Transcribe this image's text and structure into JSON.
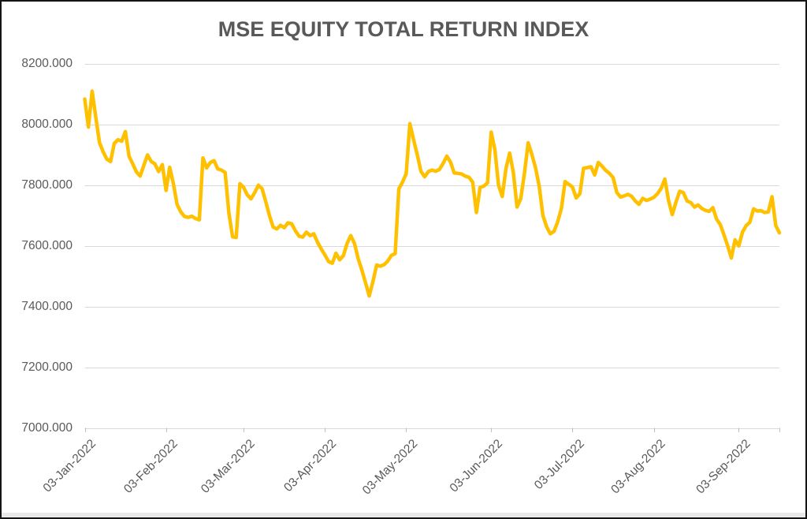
{
  "title": "MSE EQUITY TOTAL RETURN INDEX",
  "colors": {
    "line": "#FFC000",
    "gridline": "#D9D9D9",
    "axis_line": "#D9D9D9",
    "tick_mark": "#BFBFBF",
    "label_text": "#595959",
    "title_text": "#595959",
    "background": "#FFFFFF",
    "frame_border": "#141414",
    "bottom_strip": "#E9E9E9"
  },
  "chart_data": {
    "type": "line",
    "title": "MSE EQUITY TOTAL RETURN INDEX",
    "xlabel": "",
    "ylabel": "",
    "ylim": [
      7000,
      8200
    ],
    "y_tick_values": [
      8200,
      8000,
      7800,
      7600,
      7400,
      7200,
      7000
    ],
    "y_tick_labels": [
      "8200.000",
      "8000.000",
      "7800.000",
      "7600.000",
      "7400.000",
      "7200.000",
      "7000.000"
    ],
    "x_tick_labels": [
      "03-Jan-2022",
      "03-Feb-2022",
      "03-Mar-2022",
      "03-Apr-2022",
      "03-May-2022",
      "03-Jun-2022",
      "03-Jul-2022",
      "03-Aug-2022",
      "03-Sep-2022"
    ],
    "x_tick_day_index": [
      0,
      22,
      43,
      65,
      87,
      110,
      132,
      154,
      177
    ],
    "grid": true,
    "legend": "none",
    "series": [
      {
        "name": "MSE Equity Total Return Index",
        "color": "#FFC000",
        "values": [
          8084,
          7992,
          8110,
          8023,
          7940,
          7910,
          7886,
          7878,
          7938,
          7950,
          7945,
          7977,
          7895,
          7870,
          7844,
          7830,
          7865,
          7900,
          7878,
          7870,
          7845,
          7868,
          7783,
          7859,
          7805,
          7737,
          7712,
          7697,
          7694,
          7698,
          7690,
          7686,
          7890,
          7857,
          7875,
          7881,
          7854,
          7850,
          7842,
          7709,
          7630,
          7628,
          7805,
          7793,
          7768,
          7755,
          7776,
          7800,
          7788,
          7745,
          7700,
          7662,
          7656,
          7668,
          7660,
          7676,
          7673,
          7650,
          7632,
          7629,
          7645,
          7634,
          7640,
          7612,
          7590,
          7570,
          7548,
          7543,
          7576,
          7554,
          7568,
          7608,
          7634,
          7608,
          7558,
          7520,
          7478,
          7435,
          7482,
          7537,
          7533,
          7538,
          7550,
          7569,
          7574,
          7788,
          7810,
          7838,
          8003,
          7950,
          7900,
          7845,
          7828,
          7845,
          7850,
          7846,
          7852,
          7872,
          7896,
          7876,
          7840,
          7839,
          7837,
          7830,
          7826,
          7810,
          7710,
          7793,
          7797,
          7808,
          7975,
          7916,
          7800,
          7763,
          7855,
          7906,
          7842,
          7728,
          7756,
          7840,
          7940,
          7902,
          7858,
          7797,
          7700,
          7663,
          7640,
          7648,
          7680,
          7724,
          7812,
          7803,
          7794,
          7758,
          7772,
          7856,
          7858,
          7861,
          7834,
          7875,
          7863,
          7849,
          7839,
          7825,
          7776,
          7761,
          7765,
          7770,
          7764,
          7748,
          7737,
          7757,
          7750,
          7754,
          7760,
          7772,
          7790,
          7820,
          7750,
          7703,
          7744,
          7780,
          7776,
          7748,
          7743,
          7728,
          7735,
          7723,
          7717,
          7714,
          7726,
          7688,
          7670,
          7636,
          7600,
          7560,
          7620,
          7600,
          7645,
          7667,
          7678,
          7722,
          7715,
          7716,
          7710,
          7712,
          7762,
          7668,
          7643
        ]
      }
    ]
  }
}
